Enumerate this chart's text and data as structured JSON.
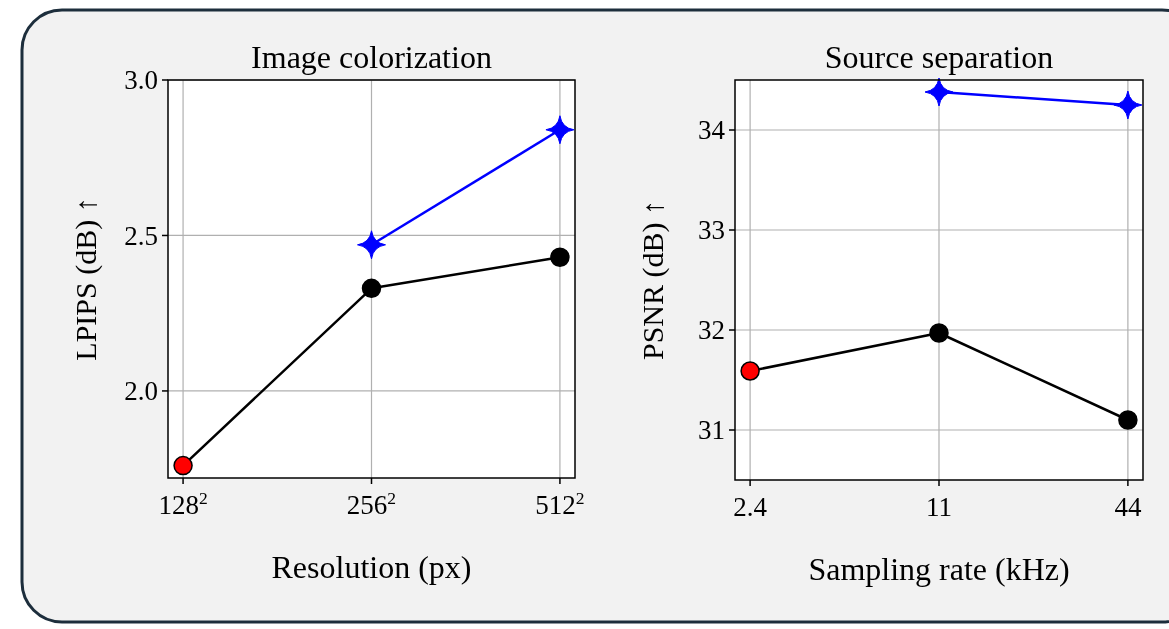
{
  "chart_data": [
    {
      "type": "line",
      "title": "Image colorization",
      "xlabel": "Resolution (px)",
      "ylabel": "LPIPS (dB) ↑",
      "categories": [
        "128$^{2}$",
        "256$^{2}$",
        "512$^{2}$"
      ],
      "series": [
        {
          "color": "#000000",
          "colors": [
            "#ff0000",
            "#000000",
            "#000000"
          ],
          "values": [
            1.76,
            2.33,
            2.43
          ],
          "marker": "circle"
        },
        {
          "color": "#0000ff",
          "values": [
            null,
            2.47,
            2.84
          ],
          "marker": "star"
        }
      ],
      "ylim": [
        1.72,
        3.0
      ],
      "yticks": [
        {
          "value": 2.0,
          "label": "2.0"
        },
        {
          "value": 2.5,
          "label": "2.5"
        },
        {
          "value": 3.0,
          "label": "3.0"
        }
      ],
      "grid": true
    },
    {
      "type": "line",
      "title": "Source separation",
      "xlabel": "Sampling rate (kHz)",
      "ylabel": "PSNR (dB) ↑",
      "categories": [
        "2.4",
        "11",
        "44"
      ],
      "series": [
        {
          "color": "#000000",
          "colors": [
            "#ff0000",
            "#000000",
            "#000000"
          ],
          "values": [
            31.59,
            31.97,
            31.1
          ],
          "marker": "circle"
        },
        {
          "color": "#0000ff",
          "values": [
            null,
            34.38,
            34.25
          ],
          "marker": "star"
        }
      ],
      "ylim": [
        30.5,
        34.5
      ],
      "yticks": [
        31,
        32,
        33,
        34
      ],
      "grid": true
    }
  ]
}
